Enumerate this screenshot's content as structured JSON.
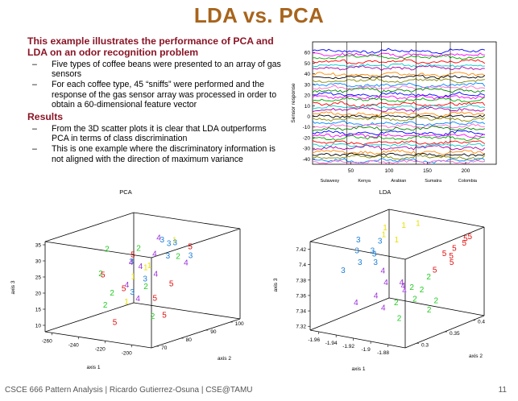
{
  "slide": {
    "title": "LDA vs. PCA",
    "intro_heading": "This example illustrates the performance of PCA and LDA on an odor recognition problem",
    "intro_bullets": [
      "Five types of coffee beans were presented to an array of gas sensors",
      "For each coffee type, 45 “sniffs” were performed and the response of the gas sensor array was processed in order to obtain a 60-dimensional feature vector"
    ],
    "results_heading": "Results",
    "results_bullets": [
      "From the 3D scatter plots it is clear that LDA outperforms PCA in terms of class discrimination",
      "This is one example where the discriminatory information is not aligned with the direction of maximum variance"
    ],
    "bullet_dash": "–"
  },
  "footer": {
    "left": "CSCE 666 Pattern Analysis | Ricardo Gutierrez-Osuna | CSE@TAMU",
    "page_number": "11"
  },
  "colors": {
    "title": "#a8641c",
    "heading": "#8a1526",
    "class_1": "#e8e000",
    "class_2": "#22cc22",
    "class_3": "#1e7fd8",
    "class_4": "#9a2fd8",
    "class_5": "#e01010"
  },
  "chart_data": [
    {
      "type": "line",
      "title": "",
      "ylabel": "Sensor response",
      "xlabel": "",
      "xlim": [
        0,
        240
      ],
      "ylim": [
        -45,
        70
      ],
      "x_ticks": [
        50,
        100,
        150,
        200
      ],
      "y_ticks": [
        -40,
        -30,
        -20,
        -10,
        0,
        10,
        20,
        30,
        40,
        50,
        60
      ],
      "class_segments": [
        {
          "label": "Sulawesy",
          "from": 0,
          "to": 45
        },
        {
          "label": "Kenya",
          "from": 45,
          "to": 90
        },
        {
          "label": "Arabian",
          "from": 90,
          "to": 135
        },
        {
          "label": "Sumatra",
          "from": 135,
          "to": 180
        },
        {
          "label": "Colombia",
          "from": 180,
          "to": 225
        }
      ],
      "series_count": 60,
      "series_levels_approx": [
        62,
        58,
        55,
        52,
        48,
        45,
        40,
        37,
        33,
        30,
        27,
        24,
        21,
        18,
        15,
        12,
        9,
        6,
        3,
        0,
        -3,
        -6,
        -9,
        -12,
        -15,
        -18,
        -21,
        -24,
        -27,
        -30,
        -33,
        -36,
        -39,
        -41,
        -43
      ]
    },
    {
      "type": "scatter",
      "title": "PCA",
      "xlabel": "axis 1",
      "ylabel": "axis 2",
      "zlabel": "axis 3",
      "x_ticks": [
        -260,
        -240,
        -220,
        -200
      ],
      "y_ticks": [
        70,
        80,
        90,
        100
      ],
      "z_ticks": [
        10,
        15,
        20,
        25,
        30,
        35
      ],
      "xlim": [
        -265,
        -185
      ],
      "ylim": [
        68,
        104
      ],
      "zlim": [
        8,
        36
      ],
      "marker": "class number glyph",
      "points": [
        {
          "c": 1,
          "x": -232,
          "y": 86,
          "z": 22
        },
        {
          "c": 1,
          "x": -205,
          "y": 78,
          "z": 29
        },
        {
          "c": 1,
          "x": -226,
          "y": 80,
          "z": 16
        },
        {
          "c": 1,
          "x": -212,
          "y": 92,
          "z": 33
        },
        {
          "c": 1,
          "x": -219,
          "y": 84,
          "z": 26
        },
        {
          "c": 2,
          "x": -248,
          "y": 84,
          "z": 30
        },
        {
          "c": 2,
          "x": -238,
          "y": 76,
          "z": 25
        },
        {
          "c": 2,
          "x": -230,
          "y": 90,
          "z": 18
        },
        {
          "c": 2,
          "x": -222,
          "y": 72,
          "z": 21
        },
        {
          "c": 2,
          "x": -210,
          "y": 82,
          "z": 12
        },
        {
          "c": 2,
          "x": -215,
          "y": 95,
          "z": 27
        },
        {
          "c": 2,
          "x": -242,
          "y": 80,
          "z": 14
        },
        {
          "c": 2,
          "x": -228,
          "y": 86,
          "z": 31
        },
        {
          "c": 3,
          "x": -214,
          "y": 88,
          "z": 34
        },
        {
          "c": 3,
          "x": -208,
          "y": 90,
          "z": 33
        },
        {
          "c": 3,
          "x": -220,
          "y": 94,
          "z": 31
        },
        {
          "c": 3,
          "x": -206,
          "y": 86,
          "z": 30
        },
        {
          "c": 3,
          "x": -226,
          "y": 82,
          "z": 28
        },
        {
          "c": 3,
          "x": -212,
          "y": 80,
          "z": 24
        },
        {
          "c": 3,
          "x": -200,
          "y": 92,
          "z": 29
        },
        {
          "c": 3,
          "x": -218,
          "y": 78,
          "z": 20
        },
        {
          "c": 4,
          "x": -224,
          "y": 92,
          "z": 33
        },
        {
          "c": 4,
          "x": -216,
          "y": 86,
          "z": 30
        },
        {
          "c": 4,
          "x": -230,
          "y": 84,
          "z": 27
        },
        {
          "c": 4,
          "x": -204,
          "y": 80,
          "z": 26
        },
        {
          "c": 4,
          "x": -222,
          "y": 78,
          "z": 22
        },
        {
          "c": 4,
          "x": -196,
          "y": 88,
          "z": 28
        },
        {
          "c": 4,
          "x": -210,
          "y": 76,
          "z": 19
        },
        {
          "c": 4,
          "x": -234,
          "y": 90,
          "z": 24
        },
        {
          "c": 5,
          "x": -236,
          "y": 88,
          "z": 28
        },
        {
          "c": 5,
          "x": -228,
          "y": 80,
          "z": 20
        },
        {
          "c": 5,
          "x": -212,
          "y": 84,
          "z": 17
        },
        {
          "c": 5,
          "x": -220,
          "y": 72,
          "z": 12
        },
        {
          "c": 5,
          "x": -204,
          "y": 94,
          "z": 31
        },
        {
          "c": 5,
          "x": -196,
          "y": 82,
          "z": 23
        },
        {
          "c": 5,
          "x": -216,
          "y": 90,
          "z": 10
        },
        {
          "c": 5,
          "x": -240,
          "y": 78,
          "z": 24
        }
      ]
    },
    {
      "type": "scatter",
      "title": "LDA",
      "xlabel": "axis 1",
      "ylabel": "axis 2",
      "zlabel": "axis 3",
      "x_ticks": [
        -1.96,
        -1.94,
        -1.92,
        -1.9,
        -1.88
      ],
      "y_ticks": [
        0.3,
        0.35,
        0.4
      ],
      "z_ticks": [
        7.32,
        7.34,
        7.36,
        7.38,
        7.4,
        7.42
      ],
      "xlim": [
        -1.97,
        -1.86
      ],
      "ylim": [
        0.28,
        0.42
      ],
      "zlim": [
        7.315,
        7.43
      ],
      "marker": "class number glyph",
      "points": [
        {
          "c": 1,
          "x": -1.955,
          "y": 0.39,
          "z": 7.415
        },
        {
          "c": 1,
          "x": -1.94,
          "y": 0.4,
          "z": 7.418
        },
        {
          "c": 1,
          "x": -1.93,
          "y": 0.41,
          "z": 7.42
        },
        {
          "c": 1,
          "x": -1.95,
          "y": 0.38,
          "z": 7.41
        },
        {
          "c": 1,
          "x": -1.945,
          "y": 0.395,
          "z": 7.4
        },
        {
          "c": 3,
          "x": -1.96,
          "y": 0.35,
          "z": 7.41
        },
        {
          "c": 3,
          "x": -1.955,
          "y": 0.34,
          "z": 7.4
        },
        {
          "c": 3,
          "x": -1.95,
          "y": 0.36,
          "z": 7.395
        },
        {
          "c": 3,
          "x": -1.945,
          "y": 0.33,
          "z": 7.39
        },
        {
          "c": 3,
          "x": -1.94,
          "y": 0.35,
          "z": 7.385
        },
        {
          "c": 3,
          "x": -1.958,
          "y": 0.32,
          "z": 7.38
        },
        {
          "c": 3,
          "x": -1.935,
          "y": 0.34,
          "z": 7.4
        },
        {
          "c": 3,
          "x": -1.948,
          "y": 0.37,
          "z": 7.405
        },
        {
          "c": 4,
          "x": -1.925,
          "y": 0.34,
          "z": 7.38
        },
        {
          "c": 4,
          "x": -1.915,
          "y": 0.33,
          "z": 7.37
        },
        {
          "c": 4,
          "x": -1.91,
          "y": 0.35,
          "z": 7.365
        },
        {
          "c": 4,
          "x": -1.92,
          "y": 0.32,
          "z": 7.355
        },
        {
          "c": 4,
          "x": -1.9,
          "y": 0.34,
          "z": 7.36
        },
        {
          "c": 4,
          "x": -1.905,
          "y": 0.31,
          "z": 7.345
        },
        {
          "c": 4,
          "x": -1.93,
          "y": 0.3,
          "z": 7.35
        },
        {
          "c": 4,
          "x": -1.895,
          "y": 0.33,
          "z": 7.37
        },
        {
          "c": 2,
          "x": -1.885,
          "y": 0.33,
          "z": 7.37
        },
        {
          "c": 2,
          "x": -1.88,
          "y": 0.34,
          "z": 7.365
        },
        {
          "c": 2,
          "x": -1.875,
          "y": 0.32,
          "z": 7.36
        },
        {
          "c": 2,
          "x": -1.89,
          "y": 0.31,
          "z": 7.355
        },
        {
          "c": 2,
          "x": -1.87,
          "y": 0.35,
          "z": 7.35
        },
        {
          "c": 2,
          "x": -1.88,
          "y": 0.3,
          "z": 7.34
        },
        {
          "c": 2,
          "x": -1.865,
          "y": 0.33,
          "z": 7.345
        },
        {
          "c": 2,
          "x": -1.885,
          "y": 0.36,
          "z": 7.375
        },
        {
          "c": 5,
          "x": -1.88,
          "y": 0.38,
          "z": 7.4
        },
        {
          "c": 5,
          "x": -1.875,
          "y": 0.39,
          "z": 7.405
        },
        {
          "c": 5,
          "x": -1.87,
          "y": 0.4,
          "z": 7.41
        },
        {
          "c": 5,
          "x": -1.865,
          "y": 0.37,
          "z": 7.395
        },
        {
          "c": 5,
          "x": -1.885,
          "y": 0.4,
          "z": 7.39
        },
        {
          "c": 5,
          "x": -1.87,
          "y": 0.41,
          "z": 7.415
        },
        {
          "c": 5,
          "x": -1.862,
          "y": 0.39,
          "z": 7.42
        },
        {
          "c": 5,
          "x": -1.878,
          "y": 0.36,
          "z": 7.385
        }
      ]
    }
  ]
}
